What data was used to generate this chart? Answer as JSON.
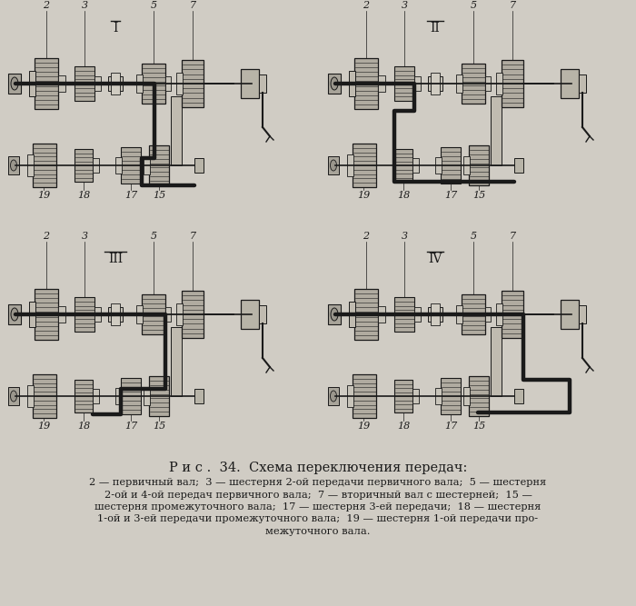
{
  "background_color": "#d0ccc4",
  "title": "Р и с .  34.  Схема переключения передач:",
  "title_fontsize": 10.5,
  "caption_lines": [
    "2 — первичный вал;  3 — шестерня 2-ой передачи первичного вала;  5 — шестерня",
    "2-ой и 4-ой передач первичного вала;  7 — вторичный вал с шестерней;  15 —",
    "шестерня промежуточного вала;  17 — шестерня 3-ей передачи;  18 — шестерня",
    "1-ой и 3-ей передачи промежуточного вала;  19 — шестерня 1-ой передачи про-",
    "межуточного вала."
  ],
  "caption_fontsize": 8.2,
  "line_color": "#1a1a1a",
  "gear_fill": "#c0bbb0",
  "shaft_fill": "#b0aba0",
  "bg_color": "#d0ccc4"
}
